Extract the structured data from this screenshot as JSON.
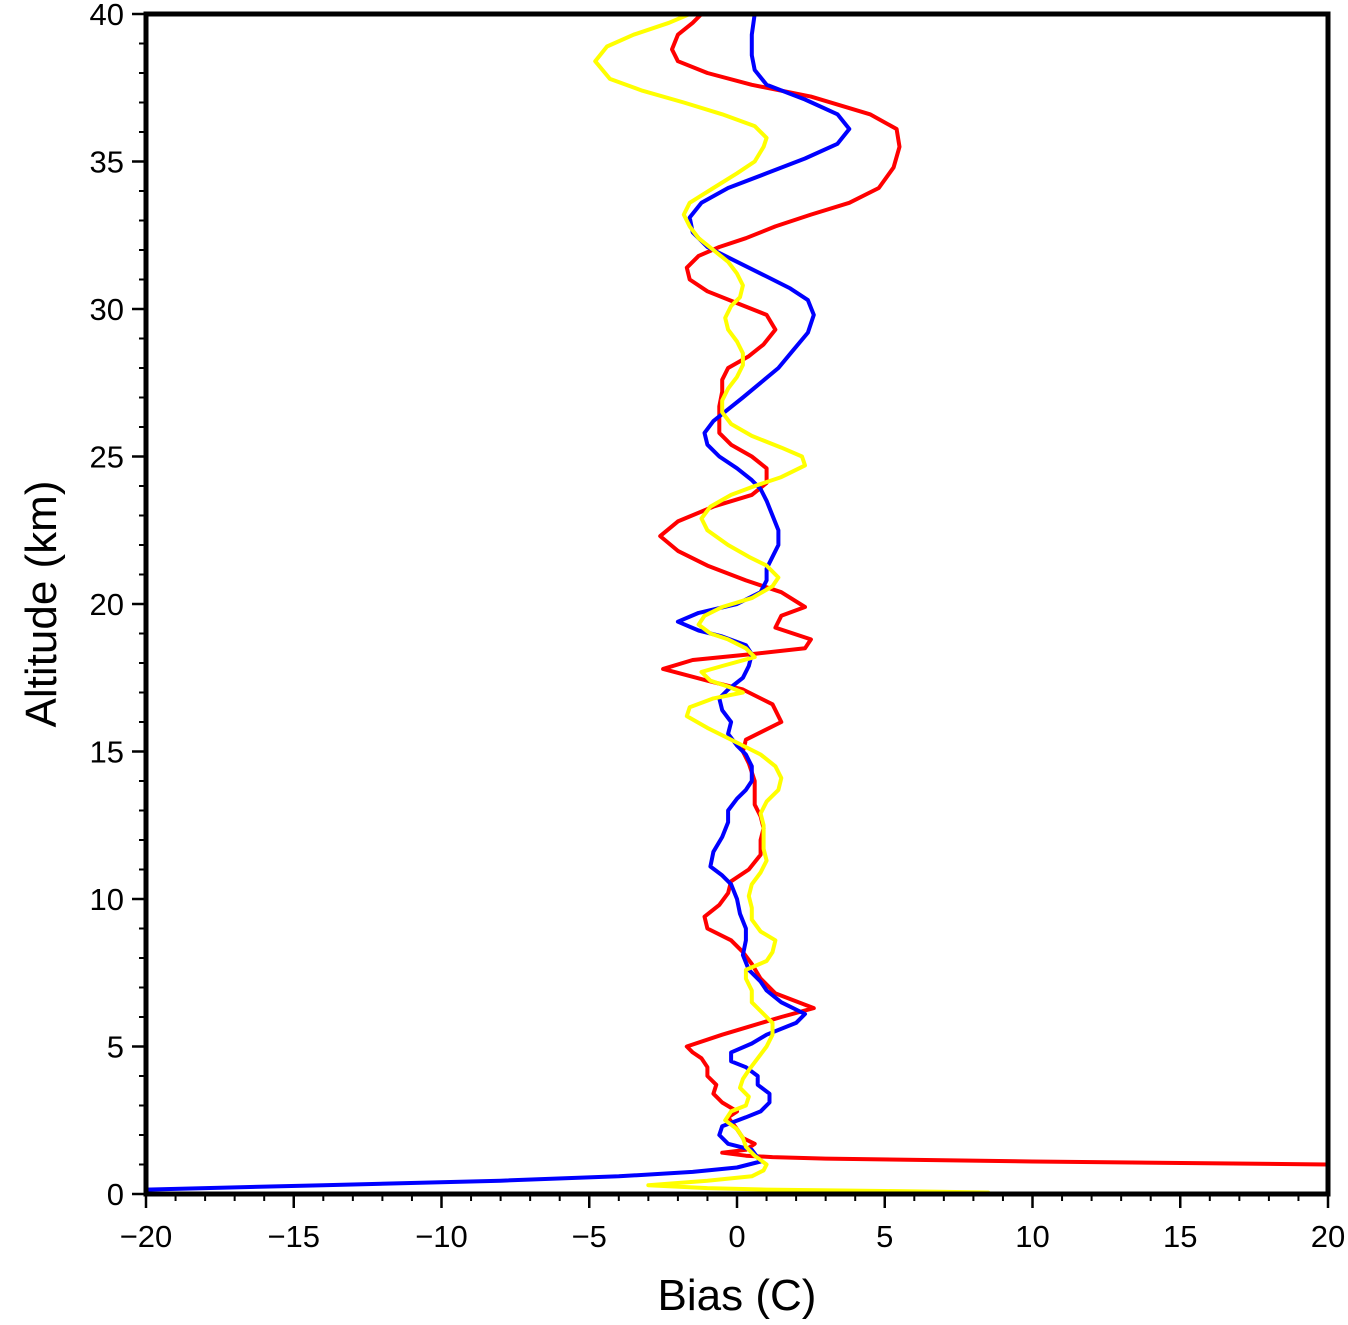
{
  "chart_data": {
    "type": "line",
    "title": "",
    "xlabel": "Bias (C)",
    "ylabel": "Altitude (km)",
    "xlim": [
      -20,
      20
    ],
    "ylim": [
      0,
      40
    ],
    "x_ticks": [
      -20,
      -15,
      -10,
      -5,
      0,
      5,
      10,
      15,
      20
    ],
    "x_tick_labels": [
      "−20",
      "−15",
      "−10",
      "−5",
      "0",
      "5",
      "10",
      "15",
      "20"
    ],
    "y_ticks": [
      0,
      5,
      10,
      15,
      20,
      25,
      30,
      35,
      40
    ],
    "y_tick_labels": [
      "0",
      "5",
      "10",
      "15",
      "20",
      "25",
      "30",
      "35",
      "40"
    ],
    "grid": false,
    "series": [
      {
        "color": "#ff0000",
        "points": [
          [
            20,
            1.0
          ],
          [
            10,
            1.1
          ],
          [
            3,
            1.2
          ],
          [
            1.2,
            1.25
          ],
          [
            0.3,
            1.3
          ],
          [
            -0.5,
            1.4
          ],
          [
            0.3,
            1.5
          ],
          [
            0.6,
            1.7
          ],
          [
            0.2,
            1.9
          ],
          [
            0,
            2.2
          ],
          [
            -0.3,
            2.6
          ],
          [
            0,
            2.8
          ],
          [
            -0.5,
            3.1
          ],
          [
            -0.8,
            3.4
          ],
          [
            -0.7,
            3.7
          ],
          [
            -1.0,
            4.0
          ],
          [
            -1.0,
            4.3
          ],
          [
            -1.2,
            4.6
          ],
          [
            -1.5,
            4.8
          ],
          [
            -1.7,
            5.0
          ],
          [
            -0.5,
            5.4
          ],
          [
            0.5,
            5.7
          ],
          [
            1.5,
            6.0
          ],
          [
            2.6,
            6.3
          ],
          [
            1.3,
            6.8
          ],
          [
            0.8,
            7.3
          ],
          [
            0.5,
            7.8
          ],
          [
            0.2,
            8.2
          ],
          [
            -0.2,
            8.6
          ],
          [
            -1.0,
            9.0
          ],
          [
            -1.1,
            9.4
          ],
          [
            -0.6,
            9.8
          ],
          [
            -0.3,
            10.2
          ],
          [
            -0.2,
            10.6
          ],
          [
            0.4,
            11.0
          ],
          [
            0.8,
            11.5
          ],
          [
            0.8,
            12.0
          ],
          [
            0.9,
            12.4
          ],
          [
            0.8,
            12.8
          ],
          [
            0.6,
            13.2
          ],
          [
            0.6,
            13.6
          ],
          [
            0.6,
            14.0
          ],
          [
            0.4,
            14.6
          ],
          [
            0.2,
            15.0
          ],
          [
            0.3,
            15.4
          ],
          [
            1.5,
            16.0
          ],
          [
            1.2,
            16.6
          ],
          [
            0.2,
            17.1
          ],
          [
            -1.0,
            17.4
          ],
          [
            -2.5,
            17.8
          ],
          [
            -1.5,
            18.1
          ],
          [
            0.5,
            18.3
          ],
          [
            2.3,
            18.5
          ],
          [
            2.5,
            18.8
          ],
          [
            1.3,
            19.2
          ],
          [
            1.5,
            19.6
          ],
          [
            2.3,
            19.9
          ],
          [
            1.5,
            20.4
          ],
          [
            0.3,
            20.8
          ],
          [
            -1.0,
            21.3
          ],
          [
            -2.0,
            21.8
          ],
          [
            -2.6,
            22.3
          ],
          [
            -2.0,
            22.8
          ],
          [
            -0.8,
            23.3
          ],
          [
            0.5,
            23.7
          ],
          [
            1.0,
            24.1
          ],
          [
            1.0,
            24.6
          ],
          [
            0.5,
            25.0
          ],
          [
            -0.2,
            25.4
          ],
          [
            -0.6,
            25.8
          ],
          [
            -0.6,
            26.2
          ],
          [
            -0.6,
            26.7
          ],
          [
            -0.5,
            27.2
          ],
          [
            -0.5,
            27.6
          ],
          [
            -0.3,
            28.0
          ],
          [
            0.4,
            28.4
          ],
          [
            0.9,
            28.8
          ],
          [
            1.3,
            29.3
          ],
          [
            1.0,
            29.8
          ],
          [
            0.0,
            30.2
          ],
          [
            -1.0,
            30.6
          ],
          [
            -1.6,
            31.0
          ],
          [
            -1.7,
            31.4
          ],
          [
            -1.3,
            31.8
          ],
          [
            -0.6,
            32.1
          ],
          [
            0.3,
            32.4
          ],
          [
            1.3,
            32.8
          ],
          [
            2.5,
            33.2
          ],
          [
            3.8,
            33.6
          ],
          [
            4.8,
            34.1
          ],
          [
            5.3,
            34.8
          ],
          [
            5.5,
            35.5
          ],
          [
            5.4,
            36.1
          ],
          [
            4.5,
            36.6
          ],
          [
            2.5,
            37.2
          ],
          [
            0.5,
            37.6
          ],
          [
            -1.0,
            38.0
          ],
          [
            -2.0,
            38.4
          ],
          [
            -2.2,
            38.8
          ],
          [
            -2.0,
            39.3
          ],
          [
            -1.5,
            39.7
          ],
          [
            -1.2,
            40.0
          ]
        ]
      },
      {
        "color": "#0000ff",
        "points": [
          [
            -20,
            0.15
          ],
          [
            -14,
            0.3
          ],
          [
            -8,
            0.45
          ],
          [
            -4,
            0.6
          ],
          [
            -1.5,
            0.75
          ],
          [
            0,
            0.9
          ],
          [
            0.8,
            1.1
          ],
          [
            0.5,
            1.5
          ],
          [
            -0.3,
            1.7
          ],
          [
            -0.6,
            2.0
          ],
          [
            -0.5,
            2.3
          ],
          [
            0.3,
            2.6
          ],
          [
            0.8,
            2.8
          ],
          [
            1.1,
            3.1
          ],
          [
            1.1,
            3.4
          ],
          [
            0.7,
            3.7
          ],
          [
            0.7,
            4.0
          ],
          [
            0.3,
            4.3
          ],
          [
            -0.2,
            4.5
          ],
          [
            -0.2,
            4.8
          ],
          [
            0.5,
            5.1
          ],
          [
            1.0,
            5.4
          ],
          [
            2.0,
            5.8
          ],
          [
            2.3,
            6.1
          ],
          [
            1.5,
            6.5
          ],
          [
            1.0,
            6.9
          ],
          [
            0.8,
            7.2
          ],
          [
            0.4,
            7.6
          ],
          [
            0.2,
            8.1
          ],
          [
            0.3,
            8.6
          ],
          [
            0.3,
            9.0
          ],
          [
            0.1,
            9.5
          ],
          [
            0,
            10.0
          ],
          [
            -0.2,
            10.5
          ],
          [
            -0.5,
            10.8
          ],
          [
            -0.9,
            11.1
          ],
          [
            -0.8,
            11.6
          ],
          [
            -0.5,
            12.1
          ],
          [
            -0.3,
            12.6
          ],
          [
            -0.3,
            13.0
          ],
          [
            0.0,
            13.4
          ],
          [
            0.3,
            13.7
          ],
          [
            0.5,
            14.0
          ],
          [
            0.5,
            14.5
          ],
          [
            0.3,
            14.9
          ],
          [
            0.0,
            15.2
          ],
          [
            -0.3,
            15.6
          ],
          [
            -0.2,
            16.0
          ],
          [
            -0.5,
            16.4
          ],
          [
            -0.6,
            16.8
          ],
          [
            -0.3,
            17.1
          ],
          [
            0.2,
            17.5
          ],
          [
            0.4,
            17.9
          ],
          [
            0.5,
            18.3
          ],
          [
            0.3,
            18.6
          ],
          [
            -0.5,
            18.9
          ],
          [
            -1.3,
            19.1
          ],
          [
            -2.0,
            19.4
          ],
          [
            -1.3,
            19.7
          ],
          [
            0.0,
            20.0
          ],
          [
            0.8,
            20.4
          ],
          [
            1.0,
            20.8
          ],
          [
            1.0,
            21.2
          ],
          [
            1.2,
            21.6
          ],
          [
            1.4,
            22.0
          ],
          [
            1.4,
            22.5
          ],
          [
            1.2,
            23.0
          ],
          [
            1.0,
            23.5
          ],
          [
            0.8,
            23.9
          ],
          [
            0.5,
            24.2
          ],
          [
            0.0,
            24.6
          ],
          [
            -0.6,
            25.0
          ],
          [
            -1.0,
            25.4
          ],
          [
            -1.1,
            25.8
          ],
          [
            -0.8,
            26.2
          ],
          [
            -0.3,
            26.6
          ],
          [
            0.2,
            27.0
          ],
          [
            0.8,
            27.5
          ],
          [
            1.4,
            28.0
          ],
          [
            1.9,
            28.6
          ],
          [
            2.4,
            29.2
          ],
          [
            2.6,
            29.8
          ],
          [
            2.4,
            30.3
          ],
          [
            1.8,
            30.7
          ],
          [
            1.0,
            31.1
          ],
          [
            0.0,
            31.6
          ],
          [
            -1.0,
            32.1
          ],
          [
            -1.5,
            32.6
          ],
          [
            -1.6,
            33.1
          ],
          [
            -1.2,
            33.6
          ],
          [
            -0.3,
            34.1
          ],
          [
            1.0,
            34.6
          ],
          [
            2.3,
            35.1
          ],
          [
            3.4,
            35.6
          ],
          [
            3.8,
            36.1
          ],
          [
            3.4,
            36.6
          ],
          [
            2.3,
            37.1
          ],
          [
            1.0,
            37.6
          ],
          [
            0.6,
            38.1
          ],
          [
            0.5,
            38.6
          ],
          [
            0.5,
            39.3
          ],
          [
            0.6,
            40.0
          ]
        ]
      },
      {
        "color": "#ffff00",
        "points": [
          [
            8.5,
            0.05
          ],
          [
            5.0,
            0.1
          ],
          [
            1.0,
            0.15
          ],
          [
            -1.0,
            0.2
          ],
          [
            -3.0,
            0.3
          ],
          [
            -1.0,
            0.45
          ],
          [
            0.5,
            0.6
          ],
          [
            0.9,
            0.8
          ],
          [
            1.0,
            1.0
          ],
          [
            0.6,
            1.3
          ],
          [
            0.3,
            1.6
          ],
          [
            0.2,
            1.9
          ],
          [
            0.0,
            2.2
          ],
          [
            -0.4,
            2.5
          ],
          [
            -0.2,
            2.8
          ],
          [
            0.3,
            3.0
          ],
          [
            0.4,
            3.3
          ],
          [
            0.1,
            3.6
          ],
          [
            0.2,
            3.9
          ],
          [
            0.4,
            4.2
          ],
          [
            0.7,
            4.6
          ],
          [
            1.0,
            5.0
          ],
          [
            1.2,
            5.4
          ],
          [
            1.2,
            5.8
          ],
          [
            0.8,
            6.2
          ],
          [
            0.5,
            6.5
          ],
          [
            0.5,
            6.9
          ],
          [
            0.3,
            7.3
          ],
          [
            0.3,
            7.6
          ],
          [
            1.0,
            7.9
          ],
          [
            1.2,
            8.2
          ],
          [
            1.3,
            8.6
          ],
          [
            0.8,
            8.9
          ],
          [
            0.5,
            9.3
          ],
          [
            0.5,
            9.7
          ],
          [
            0.4,
            10.1
          ],
          [
            0.5,
            10.5
          ],
          [
            0.8,
            10.9
          ],
          [
            1.0,
            11.3
          ],
          [
            0.9,
            11.7
          ],
          [
            0.9,
            12.1
          ],
          [
            0.9,
            12.5
          ],
          [
            0.8,
            12.9
          ],
          [
            1.0,
            13.3
          ],
          [
            1.4,
            13.7
          ],
          [
            1.5,
            14.1
          ],
          [
            1.3,
            14.5
          ],
          [
            0.8,
            14.9
          ],
          [
            0.0,
            15.3
          ],
          [
            -1.0,
            15.8
          ],
          [
            -1.7,
            16.2
          ],
          [
            -1.6,
            16.5
          ],
          [
            -0.8,
            16.8
          ],
          [
            0.2,
            17.0
          ],
          [
            -0.3,
            17.2
          ],
          [
            -0.9,
            17.4
          ],
          [
            -1.2,
            17.7
          ],
          [
            -0.5,
            17.9
          ],
          [
            0.6,
            18.2
          ],
          [
            0.3,
            18.5
          ],
          [
            -0.3,
            18.8
          ],
          [
            -0.9,
            19.0
          ],
          [
            -1.3,
            19.3
          ],
          [
            -1.1,
            19.6
          ],
          [
            -0.5,
            19.9
          ],
          [
            0.5,
            20.2
          ],
          [
            1.2,
            20.6
          ],
          [
            1.4,
            20.9
          ],
          [
            1.0,
            21.3
          ],
          [
            0.4,
            21.6
          ],
          [
            -0.3,
            22.0
          ],
          [
            -1.0,
            22.5
          ],
          [
            -1.2,
            22.9
          ],
          [
            -0.9,
            23.3
          ],
          [
            -0.2,
            23.7
          ],
          [
            0.6,
            24.0
          ],
          [
            1.5,
            24.3
          ],
          [
            2.3,
            24.7
          ],
          [
            2.2,
            25.0
          ],
          [
            1.5,
            25.3
          ],
          [
            0.5,
            25.7
          ],
          [
            -0.2,
            26.1
          ],
          [
            -0.5,
            26.5
          ],
          [
            -0.5,
            26.9
          ],
          [
            -0.3,
            27.3
          ],
          [
            0.0,
            27.7
          ],
          [
            0.2,
            28.1
          ],
          [
            0.2,
            28.5
          ],
          [
            0.0,
            28.9
          ],
          [
            -0.3,
            29.3
          ],
          [
            -0.4,
            29.7
          ],
          [
            -0.2,
            30.1
          ],
          [
            0.1,
            30.4
          ],
          [
            0.2,
            30.8
          ],
          [
            0.0,
            31.2
          ],
          [
            -0.3,
            31.6
          ],
          [
            -0.8,
            32.0
          ],
          [
            -1.3,
            32.4
          ],
          [
            -1.6,
            32.8
          ],
          [
            -1.8,
            33.2
          ],
          [
            -1.6,
            33.6
          ],
          [
            -0.8,
            34.1
          ],
          [
            0.0,
            34.6
          ],
          [
            0.6,
            35.0
          ],
          [
            0.9,
            35.5
          ],
          [
            1.0,
            35.8
          ],
          [
            0.6,
            36.2
          ],
          [
            -0.5,
            36.6
          ],
          [
            -1.8,
            37.0
          ],
          [
            -3.2,
            37.4
          ],
          [
            -4.3,
            37.8
          ],
          [
            -4.8,
            38.4
          ],
          [
            -4.4,
            38.9
          ],
          [
            -3.5,
            39.3
          ],
          [
            -2.3,
            39.7
          ],
          [
            -1.6,
            40.0
          ]
        ]
      }
    ]
  }
}
